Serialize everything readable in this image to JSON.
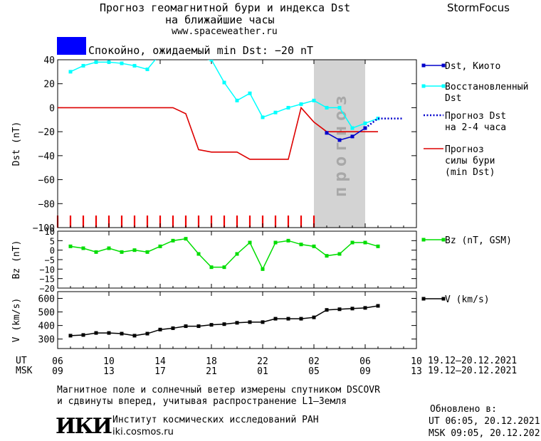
{
  "header": {
    "title_line1": "Прогноз геомагнитной бури и индекса Dst",
    "title_line2": "на ближайшие часы",
    "url": "www.spaceweather.ru",
    "brand": "StormFocus",
    "status_color": "#0000ff",
    "status_text": "Спокойно, ожидаемый min Dst: −20 nT"
  },
  "footer": {
    "ut_label": "UT",
    "msk_label": "MSK",
    "ut_range": "19.12–20.12.2021",
    "msk_range": "19.12–20.12.2021",
    "note_line1": "Магнитное поле и солнечный ветер измерены спутником DSCOVR",
    "note_line2": "и сдвинуты вперед, учитывая распространение L1–Земля",
    "institute_logo": "ИКИ",
    "institute_name": "Институт космических исследований РАН",
    "institute_url": "iki.cosmos.ru",
    "updated_label": "Обновлено в:",
    "updated_ut": "UT   06:05, 20.12.2021",
    "updated_msk": "MSK 09:05, 20.12.2021"
  },
  "chart_data": [
    {
      "type": "line",
      "ylabel": "Dst (nT)",
      "ylim": [
        -100,
        40
      ],
      "yticks": [
        40,
        20,
        0,
        -20,
        -40,
        -60,
        -80,
        -100
      ],
      "xlim_hours": [
        6,
        34
      ],
      "forecast_band_label": "прогноз",
      "forecast_band_hours": [
        26,
        30
      ],
      "legend_placement": "right",
      "series": [
        {
          "name": "Dst, Киото",
          "color": "#0000cc",
          "style": "solid-markers",
          "x": [
            27,
            28,
            29,
            30
          ],
          "y": [
            -21,
            -27,
            -24,
            -17
          ]
        },
        {
          "name": "Восстановленный Dst",
          "color": "#00ffff",
          "style": "solid-markers",
          "x": [
            7,
            8,
            9,
            10,
            11,
            12,
            13,
            14,
            18,
            19,
            20,
            21,
            22,
            23,
            24,
            25,
            26,
            27,
            28,
            29,
            30,
            31
          ],
          "y": [
            30,
            35,
            38,
            38,
            37,
            35,
            32,
            45,
            40,
            21,
            6,
            12,
            -8,
            -4,
            0,
            3,
            6,
            0,
            0,
            -17,
            -13,
            -9
          ]
        },
        {
          "name": "Прогноз Dst на 2-4 часа",
          "color": "#0000cc",
          "style": "dotted",
          "x": [
            30,
            31,
            32,
            33
          ],
          "y": [
            -17,
            -9,
            -9,
            -9
          ]
        },
        {
          "name": "Прогноз силы бури (min Dst)",
          "color": "#dd0000",
          "style": "solid",
          "x": [
            6,
            15,
            16,
            17,
            18,
            19,
            20,
            21,
            22,
            23,
            24,
            25,
            26,
            27,
            28,
            31
          ],
          "y": [
            0,
            0,
            -5,
            -35,
            -37,
            -37,
            -37,
            -43,
            -43,
            -43,
            -43,
            0,
            -12,
            -20,
            -20,
            -20
          ]
        }
      ],
      "storm_markers_hours": [
        6,
        7,
        8,
        9,
        10,
        11,
        12,
        13,
        14,
        15,
        16,
        17,
        18,
        19,
        20,
        21,
        22,
        23,
        24,
        25,
        26
      ]
    },
    {
      "type": "line",
      "ylabel": "Bz (nT)",
      "ylim": [
        -20,
        10
      ],
      "yticks": [
        10,
        5,
        0,
        -5,
        -10,
        -15,
        -20
      ],
      "legend_placement": "right",
      "series": [
        {
          "name": "Bz (nT, GSM)",
          "color": "#00dd00",
          "x": [
            7,
            8,
            9,
            10,
            11,
            12,
            13,
            14,
            15,
            16,
            17,
            18,
            19,
            20,
            21,
            22,
            23,
            24,
            25,
            26,
            27,
            28,
            29,
            30,
            31
          ],
          "y": [
            2,
            1,
            -1,
            1,
            -1,
            0,
            -1,
            2,
            5,
            6,
            -2,
            -9,
            -9,
            -2,
            4,
            -10,
            4,
            5,
            3,
            2,
            -3,
            -2,
            4,
            4,
            2
          ]
        }
      ]
    },
    {
      "type": "line",
      "ylabel": "V (km/s)",
      "ylim": [
        230,
        650
      ],
      "yticks": [
        600,
        500,
        400,
        300
      ],
      "legend_placement": "right",
      "series": [
        {
          "name": "V (km/s)",
          "color": "#000000",
          "x": [
            7,
            8,
            9,
            10,
            11,
            12,
            13,
            14,
            15,
            16,
            17,
            18,
            19,
            20,
            21,
            22,
            23,
            24,
            25,
            26,
            27,
            28,
            29,
            30,
            31
          ],
          "y": [
            325,
            330,
            345,
            345,
            340,
            325,
            340,
            370,
            380,
            395,
            395,
            405,
            410,
            420,
            425,
            425,
            450,
            450,
            450,
            460,
            515,
            520,
            525,
            530,
            545
          ]
        }
      ]
    }
  ],
  "x_axis": {
    "ut_ticks": [
      "06",
      "10",
      "14",
      "18",
      "22",
      "02",
      "06",
      "10"
    ],
    "msk_ticks": [
      "09",
      "13",
      "17",
      "21",
      "01",
      "05",
      "09",
      "13"
    ],
    "tick_hours": [
      6,
      10,
      14,
      18,
      22,
      26,
      30,
      34
    ]
  }
}
